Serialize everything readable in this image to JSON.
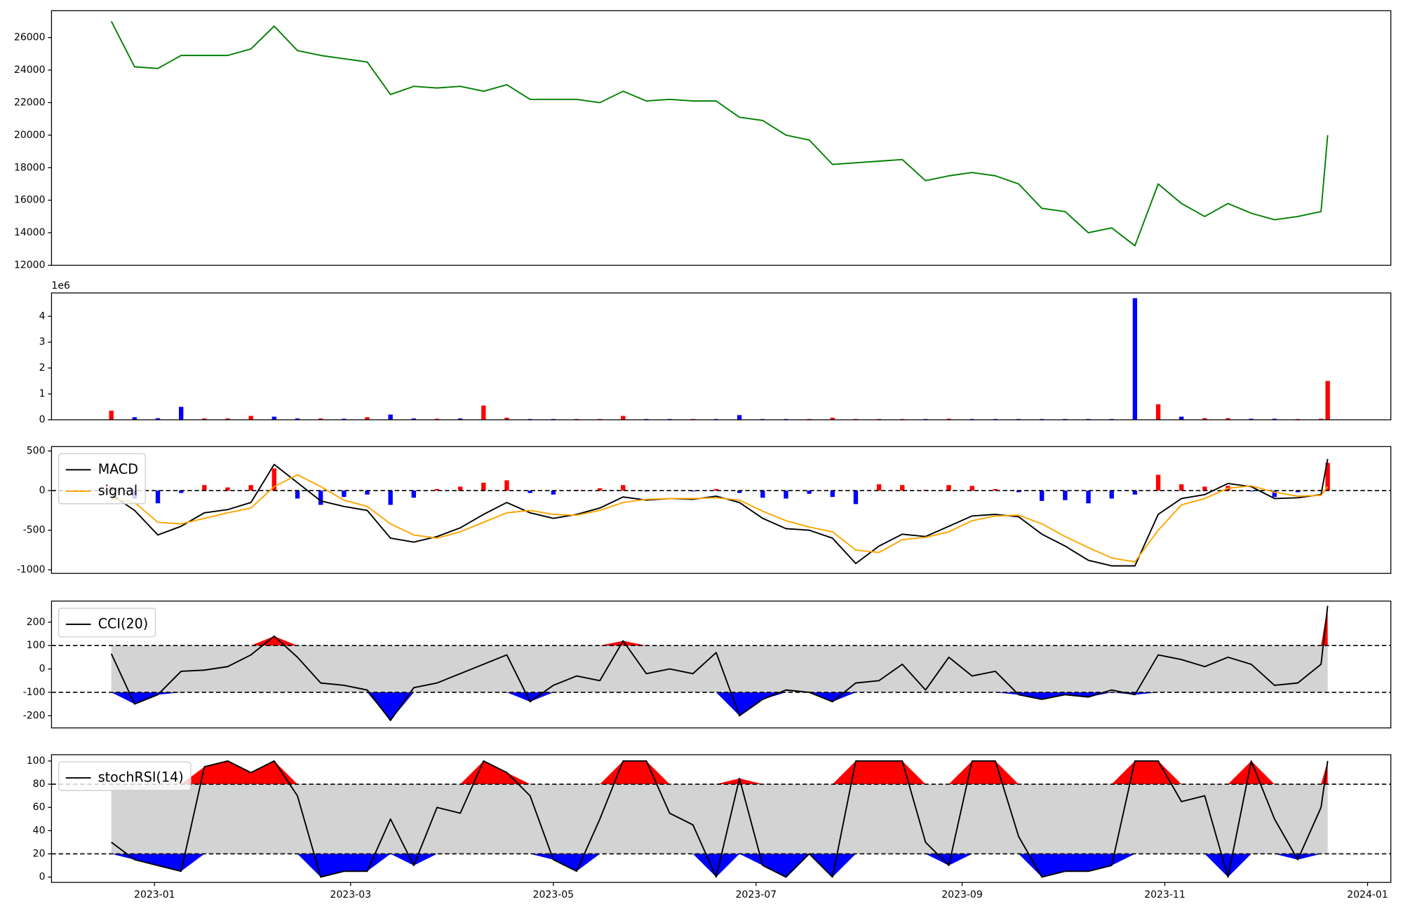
{
  "chart_data": [
    {
      "type": "line",
      "x": [
        "2022-12-19",
        "2022-12-26",
        "2023-01-02",
        "2023-01-09",
        "2023-01-16",
        "2023-01-23",
        "2023-01-30",
        "2023-02-06",
        "2023-02-13",
        "2023-02-20",
        "2023-02-27",
        "2023-03-06",
        "2023-03-13",
        "2023-03-20",
        "2023-03-27",
        "2023-04-03",
        "2023-04-10",
        "2023-04-17",
        "2023-04-24",
        "2023-05-01",
        "2023-05-08",
        "2023-05-15",
        "2023-05-22",
        "2023-05-29",
        "2023-06-05",
        "2023-06-12",
        "2023-06-19",
        "2023-06-26",
        "2023-07-03",
        "2023-07-10",
        "2023-07-17",
        "2023-07-24",
        "2023-07-31",
        "2023-08-07",
        "2023-08-14",
        "2023-08-21",
        "2023-08-28",
        "2023-09-04",
        "2023-09-11",
        "2023-09-18",
        "2023-09-25",
        "2023-10-02",
        "2023-10-09",
        "2023-10-16",
        "2023-10-23",
        "2023-10-30",
        "2023-11-06",
        "2023-11-13",
        "2023-11-20",
        "2023-11-27",
        "2023-12-04",
        "2023-12-11",
        "2023-12-18",
        "2023-12-20"
      ],
      "series": [
        {
          "color": "#008000",
          "values": [
            27000,
            24200,
            24100,
            24900,
            24900,
            24900,
            25300,
            26700,
            25200,
            24900,
            24700,
            24500,
            22500,
            23000,
            22900,
            23000,
            22700,
            23100,
            22200,
            22200,
            22200,
            22000,
            22700,
            22100,
            22200,
            22100,
            22100,
            21100,
            20900,
            20000,
            19700,
            18200,
            18300,
            18400,
            18500,
            17200,
            17500,
            17700,
            17500,
            17000,
            15500,
            15300,
            14000,
            14300,
            13200,
            17000,
            15800,
            15000,
            15800,
            15200,
            14800,
            15000,
            15300,
            20000
          ]
        }
      ],
      "xlim": [
        "2022-12-01",
        "2024-01-08"
      ],
      "ylim": [
        12000,
        27650
      ],
      "yticks": [
        12000,
        14000,
        16000,
        18000,
        20000,
        22000,
        24000,
        26000
      ]
    },
    {
      "type": "bar",
      "x": [
        "2022-12-19",
        "2022-12-26",
        "2023-01-02",
        "2023-01-09",
        "2023-01-16",
        "2023-01-23",
        "2023-01-30",
        "2023-02-06",
        "2023-02-13",
        "2023-02-20",
        "2023-02-27",
        "2023-03-06",
        "2023-03-13",
        "2023-03-20",
        "2023-03-27",
        "2023-04-03",
        "2023-04-10",
        "2023-04-17",
        "2023-04-24",
        "2023-05-01",
        "2023-05-08",
        "2023-05-15",
        "2023-05-22",
        "2023-05-29",
        "2023-06-05",
        "2023-06-12",
        "2023-06-19",
        "2023-06-26",
        "2023-07-03",
        "2023-07-10",
        "2023-07-17",
        "2023-07-24",
        "2023-07-31",
        "2023-08-07",
        "2023-08-14",
        "2023-08-21",
        "2023-08-28",
        "2023-09-04",
        "2023-09-11",
        "2023-09-18",
        "2023-09-25",
        "2023-10-02",
        "2023-10-09",
        "2023-10-16",
        "2023-10-23",
        "2023-10-30",
        "2023-11-06",
        "2023-11-13",
        "2023-11-20",
        "2023-11-27",
        "2023-12-04",
        "2023-12-11",
        "2023-12-18",
        "2023-12-20"
      ],
      "values": [
        0.35,
        0.1,
        0.06,
        0.5,
        0.05,
        0.05,
        0.15,
        0.12,
        0.05,
        0.05,
        0.04,
        0.1,
        0.2,
        0.05,
        0.04,
        0.05,
        0.55,
        0.08,
        0.03,
        0.03,
        0.03,
        0.03,
        0.15,
        0.03,
        0.03,
        0.03,
        0.03,
        0.18,
        0.03,
        0.03,
        0.03,
        0.08,
        0.03,
        0.03,
        0.03,
        0.03,
        0.04,
        0.03,
        0.03,
        0.03,
        0.03,
        0.03,
        0.03,
        0.03,
        4.7,
        0.6,
        0.12,
        0.06,
        0.06,
        0.04,
        0.04,
        0.03,
        0.04,
        1.5
      ],
      "colors": [
        "#ff0000",
        "#0000ff",
        "#0000ff",
        "#0000ff",
        "#ff0000",
        "#ff0000",
        "#ff0000",
        "#0000ff",
        "#0000ff",
        "#ff0000",
        "#0000ff",
        "#ff0000",
        "#0000ff",
        "#0000ff",
        "#ff0000",
        "#0000ff",
        "#ff0000",
        "#ff0000",
        "#0000ff",
        "#0000ff",
        "#ff0000",
        "#ff0000",
        "#ff0000",
        "#0000ff",
        "#0000ff",
        "#ff0000",
        "#0000ff",
        "#0000ff",
        "#0000ff",
        "#0000ff",
        "#ff0000",
        "#ff0000",
        "#ff0000",
        "#ff0000",
        "#ff0000",
        "#0000ff",
        "#ff0000",
        "#0000ff",
        "#0000ff",
        "#0000ff",
        "#0000ff",
        "#0000ff",
        "#0000ff",
        "#0000ff",
        "#0000ff",
        "#ff0000",
        "#0000ff",
        "#ff0000",
        "#ff0000",
        "#0000ff",
        "#0000ff",
        "#ff0000",
        "#ff0000",
        "#ff0000"
      ],
      "xlim": [
        "2022-12-01",
        "2024-01-08"
      ],
      "ylim": [
        0,
        4.9
      ],
      "yticks": [
        0,
        1,
        2,
        3,
        4
      ],
      "offset_label": "1e6"
    },
    {
      "type": "macd",
      "x": [
        "2022-12-19",
        "2022-12-26",
        "2023-01-02",
        "2023-01-09",
        "2023-01-16",
        "2023-01-23",
        "2023-01-30",
        "2023-02-06",
        "2023-02-13",
        "2023-02-20",
        "2023-02-27",
        "2023-03-06",
        "2023-03-13",
        "2023-03-20",
        "2023-03-27",
        "2023-04-03",
        "2023-04-10",
        "2023-04-17",
        "2023-04-24",
        "2023-05-01",
        "2023-05-08",
        "2023-05-15",
        "2023-05-22",
        "2023-05-29",
        "2023-06-05",
        "2023-06-12",
        "2023-06-19",
        "2023-06-26",
        "2023-07-03",
        "2023-07-10",
        "2023-07-17",
        "2023-07-24",
        "2023-07-31",
        "2023-08-07",
        "2023-08-14",
        "2023-08-21",
        "2023-08-28",
        "2023-09-04",
        "2023-09-11",
        "2023-09-18",
        "2023-09-25",
        "2023-10-02",
        "2023-10-09",
        "2023-10-16",
        "2023-10-23",
        "2023-10-30",
        "2023-11-06",
        "2023-11-13",
        "2023-11-20",
        "2023-11-27",
        "2023-12-04",
        "2023-12-11",
        "2023-12-18",
        "2023-12-20"
      ],
      "series": [
        {
          "name": "MACD",
          "color": "#000000",
          "values": [
            -50,
            -250,
            -560,
            -450,
            -280,
            -240,
            -150,
            330,
            100,
            -130,
            -200,
            -250,
            -600,
            -650,
            -580,
            -470,
            -300,
            -150,
            -280,
            -350,
            -300,
            -220,
            -80,
            -120,
            -100,
            -110,
            -70,
            -150,
            -350,
            -480,
            -500,
            -600,
            -920,
            -700,
            -550,
            -580,
            -450,
            -320,
            -300,
            -330,
            -550,
            -700,
            -880,
            -950,
            -950,
            -300,
            -100,
            -50,
            90,
            50,
            -100,
            -90,
            -50,
            400
          ]
        },
        {
          "name": "signal",
          "color": "#ffa500",
          "values": [
            -100,
            -150,
            -400,
            -420,
            -350,
            -280,
            -220,
            50,
            200,
            50,
            -120,
            -200,
            -420,
            -560,
            -600,
            -520,
            -400,
            -280,
            -250,
            -300,
            -310,
            -250,
            -150,
            -110,
            -100,
            -100,
            -90,
            -120,
            -260,
            -380,
            -460,
            -520,
            -750,
            -780,
            -620,
            -590,
            -520,
            -380,
            -320,
            -310,
            -420,
            -580,
            -720,
            -850,
            -900,
            -500,
            -180,
            -100,
            30,
            60,
            -20,
            -70,
            -60,
            50
          ]
        }
      ],
      "histogram": {
        "values": [
          50,
          -100,
          -160,
          -30,
          70,
          40,
          70,
          280,
          -100,
          -180,
          -80,
          -50,
          -180,
          -90,
          20,
          50,
          100,
          130,
          -30,
          -50,
          10,
          30,
          70,
          -10,
          0,
          -10,
          20,
          -30,
          -90,
          -100,
          -40,
          -80,
          -170,
          80,
          70,
          10,
          70,
          60,
          20,
          -20,
          -130,
          -120,
          -160,
          -100,
          -50,
          200,
          80,
          50,
          60,
          -10,
          -80,
          -20,
          10,
          350
        ],
        "positive_color": "#ff0000",
        "negative_color": "#0000ff"
      },
      "hlines": [
        0
      ],
      "xlim": [
        "2022-12-01",
        "2024-01-08"
      ],
      "ylim": [
        -1045,
        556
      ],
      "yticks": [
        -1000,
        -500,
        0,
        500
      ],
      "legend": "upper left"
    },
    {
      "type": "band",
      "x": [
        "2022-12-19",
        "2022-12-26",
        "2023-01-02",
        "2023-01-09",
        "2023-01-16",
        "2023-01-23",
        "2023-01-30",
        "2023-02-06",
        "2023-02-13",
        "2023-02-20",
        "2023-02-27",
        "2023-03-06",
        "2023-03-13",
        "2023-03-20",
        "2023-03-27",
        "2023-04-03",
        "2023-04-10",
        "2023-04-17",
        "2023-04-24",
        "2023-05-01",
        "2023-05-08",
        "2023-05-15",
        "2023-05-22",
        "2023-05-29",
        "2023-06-05",
        "2023-06-12",
        "2023-06-19",
        "2023-06-26",
        "2023-07-03",
        "2023-07-10",
        "2023-07-17",
        "2023-07-24",
        "2023-07-31",
        "2023-08-07",
        "2023-08-14",
        "2023-08-21",
        "2023-08-28",
        "2023-09-04",
        "2023-09-11",
        "2023-09-18",
        "2023-09-25",
        "2023-10-02",
        "2023-10-09",
        "2023-10-16",
        "2023-10-23",
        "2023-10-30",
        "2023-11-06",
        "2023-11-13",
        "2023-11-20",
        "2023-11-27",
        "2023-12-04",
        "2023-12-11",
        "2023-12-18",
        "2023-12-20"
      ],
      "series": [
        {
          "name": "CCI(20)",
          "color": "#000000",
          "values": [
            65,
            -150,
            -110,
            -10,
            -5,
            10,
            60,
            140,
            50,
            -60,
            -70,
            -90,
            -220,
            -80,
            -60,
            -20,
            20,
            60,
            -140,
            -70,
            -30,
            -50,
            120,
            -20,
            0,
            -20,
            70,
            -200,
            -130,
            -90,
            -100,
            -140,
            -60,
            -50,
            20,
            -90,
            50,
            -30,
            -10,
            -110,
            -130,
            -110,
            -120,
            -90,
            -110,
            60,
            40,
            10,
            50,
            20,
            -70,
            -60,
            20,
            270
          ]
        }
      ],
      "thresholds": [
        -100,
        100
      ],
      "band_color": "#d3d3d3",
      "above_color": "#ff0000",
      "below_color": "#0000ff",
      "xlim": [
        "2022-12-01",
        "2024-01-08"
      ],
      "ylim": [
        -252,
        290
      ],
      "yticks": [
        -200,
        -100,
        0,
        100,
        200
      ],
      "legend": "upper left"
    },
    {
      "type": "band",
      "x": [
        "2022-12-19",
        "2022-12-26",
        "2023-01-02",
        "2023-01-09",
        "2023-01-16",
        "2023-01-23",
        "2023-01-30",
        "2023-02-06",
        "2023-02-13",
        "2023-02-20",
        "2023-02-27",
        "2023-03-06",
        "2023-03-13",
        "2023-03-20",
        "2023-03-27",
        "2023-04-03",
        "2023-04-10",
        "2023-04-17",
        "2023-04-24",
        "2023-05-01",
        "2023-05-08",
        "2023-05-15",
        "2023-05-22",
        "2023-05-29",
        "2023-06-05",
        "2023-06-12",
        "2023-06-19",
        "2023-06-26",
        "2023-07-03",
        "2023-07-10",
        "2023-07-17",
        "2023-07-24",
        "2023-07-31",
        "2023-08-07",
        "2023-08-14",
        "2023-08-21",
        "2023-08-28",
        "2023-09-04",
        "2023-09-11",
        "2023-09-18",
        "2023-09-25",
        "2023-10-02",
        "2023-10-09",
        "2023-10-16",
        "2023-10-23",
        "2023-10-30",
        "2023-11-06",
        "2023-11-13",
        "2023-11-20",
        "2023-11-27",
        "2023-12-04",
        "2023-12-11",
        "2023-12-18",
        "2023-12-20"
      ],
      "series": [
        {
          "name": "stochRSI(14)",
          "color": "#000000",
          "values": [
            30,
            15,
            10,
            5,
            95,
            100,
            90,
            100,
            70,
            0,
            5,
            5,
            50,
            10,
            60,
            55,
            100,
            90,
            70,
            15,
            5,
            50,
            100,
            100,
            55,
            45,
            0,
            85,
            10,
            0,
            20,
            0,
            100,
            100,
            100,
            30,
            10,
            100,
            100,
            35,
            0,
            5,
            5,
            10,
            100,
            100,
            65,
            70,
            0,
            100,
            50,
            15,
            60,
            100
          ]
        }
      ],
      "thresholds": [
        20,
        80
      ],
      "band_color": "#d3d3d3",
      "above_color": "#ff0000",
      "below_color": "#0000ff",
      "xlim": [
        "2022-12-01",
        "2024-01-08"
      ],
      "ylim": [
        -4.6,
        105.4
      ],
      "yticks": [
        0,
        20,
        40,
        60,
        80,
        100
      ],
      "xticks": [
        {
          "value": "2023-01-01",
          "label": "2023-01"
        },
        {
          "value": "2023-03-01",
          "label": "2023-03"
        },
        {
          "value": "2023-05-01",
          "label": "2023-05"
        },
        {
          "value": "2023-07-01",
          "label": "2023-07"
        },
        {
          "value": "2023-09-01",
          "label": "2023-09"
        },
        {
          "value": "2023-11-01",
          "label": "2023-11"
        },
        {
          "value": "2024-01-01",
          "label": "2024-01"
        }
      ],
      "legend": "upper left"
    }
  ]
}
